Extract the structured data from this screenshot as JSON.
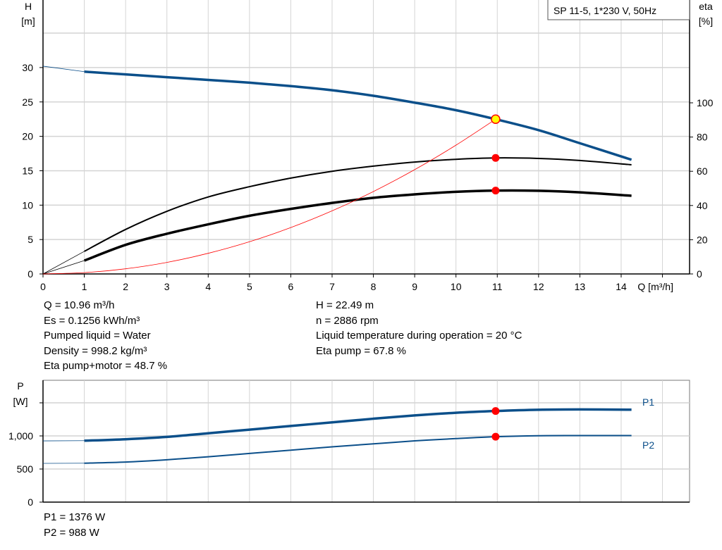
{
  "chart_data": [
    {
      "type": "line",
      "title": "SP 11-5, 1*230 V, 50Hz",
      "xlabel": "Q [m³/h]",
      "ylabel": "H\n[m]",
      "ylabel_lines": [
        "H",
        "[m]"
      ],
      "y2label_lines": [
        "eta",
        "[%]"
      ],
      "xlim": [
        0,
        15
      ],
      "ylim": [
        0,
        40
      ],
      "y2lim": [
        0,
        160
      ],
      "xticks": [
        "0",
        "1",
        "2",
        "3",
        "4",
        "5",
        "6",
        "7",
        "8",
        "9",
        "10",
        "11",
        "12",
        "13",
        "14"
      ],
      "yticks": [
        "0",
        "5",
        "10",
        "15",
        "20",
        "25",
        "30"
      ],
      "y2ticks": [
        "0",
        "20",
        "40",
        "60",
        "80",
        "100"
      ],
      "grid": true,
      "colors": {
        "head": "#0b4f8a",
        "eta": "#000000",
        "system": "#ff0000",
        "duty_point": "#ff0000",
        "duty_head_point": "#ffff00"
      },
      "series": [
        {
          "key": "head",
          "axis": "left",
          "x": [
            0,
            1,
            2,
            3,
            4,
            5,
            6,
            7,
            8,
            9,
            10,
            10.96,
            12,
            13,
            14.25
          ],
          "values": [
            30.2,
            29.4,
            29.0,
            28.6,
            28.2,
            27.8,
            27.3,
            26.7,
            25.9,
            24.9,
            23.8,
            22.49,
            20.9,
            19.0,
            16.6
          ]
        },
        {
          "key": "eta_pump",
          "axis": "right",
          "x": [
            0,
            1,
            2,
            3,
            4,
            5,
            6,
            7,
            8,
            9,
            10,
            10.96,
            12,
            13,
            14.25
          ],
          "values": [
            0,
            13.2,
            26,
            36.6,
            45,
            51,
            56,
            60,
            63,
            65.4,
            67,
            67.8,
            67.5,
            66.3,
            63.8
          ]
        },
        {
          "key": "eta_pump_motor",
          "axis": "right",
          "x": [
            0,
            1,
            2,
            3,
            4,
            5,
            6,
            7,
            8,
            9,
            10,
            10.96,
            12,
            13,
            14.25
          ],
          "values": [
            0,
            7.8,
            17,
            23.5,
            29,
            34,
            38,
            41.5,
            44.5,
            46.5,
            48,
            48.7,
            48.6,
            47.7,
            45.7
          ]
        },
        {
          "key": "system",
          "axis": "left",
          "x": [
            0,
            1,
            2,
            3,
            4,
            5,
            6,
            7,
            8,
            9,
            10,
            10.96
          ],
          "values": [
            0,
            0.19,
            0.75,
            1.68,
            3.0,
            4.68,
            6.74,
            9.17,
            11.98,
            15.16,
            18.72,
            22.49
          ]
        }
      ],
      "duty_point": {
        "Q": 10.96,
        "H": 22.49,
        "eta_pump": 67.8,
        "eta_pump_motor": 48.7
      }
    },
    {
      "type": "line",
      "ylabel_lines": [
        "P",
        "[W]"
      ],
      "xlim": [
        0,
        15
      ],
      "ylim": [
        0,
        1500
      ],
      "yticks": [
        "0",
        "500",
        "1,000",
        ""
      ],
      "grid": true,
      "colors": {
        "power": "#0b4f8a",
        "duty_point": "#ff0000"
      },
      "series": [
        {
          "name": "P1",
          "x": [
            0,
            1,
            2,
            3,
            4,
            5,
            6,
            7,
            8,
            9,
            10,
            10.96,
            12,
            13,
            14.25
          ],
          "values": [
            925,
            928,
            950,
            985,
            1040,
            1095,
            1150,
            1205,
            1260,
            1310,
            1350,
            1376,
            1395,
            1400,
            1396
          ]
        },
        {
          "name": "P2",
          "x": [
            0,
            1,
            2,
            3,
            4,
            5,
            6,
            7,
            8,
            9,
            10,
            10.96,
            12,
            13,
            14.25
          ],
          "values": [
            585,
            588,
            605,
            640,
            685,
            735,
            785,
            835,
            880,
            925,
            960,
            988,
            1003,
            1005,
            1005
          ]
        }
      ],
      "duty_point": {
        "Q": 10.96,
        "P1": 1376,
        "P2": 988
      }
    }
  ],
  "info_left": [
    "Q = 10.96 m³/h",
    "Es = 0.1256 kWh/m³",
    "Pumped liquid = Water",
    "Density = 998.2 kg/m³",
    "Eta pump+motor = 48.7 %"
  ],
  "info_right": [
    "H = 22.49 m",
    "n = 2886 rpm",
    "Liquid temperature during operation = 20 °C",
    "Eta pump = 67.8 %"
  ],
  "power_info": [
    "P1 = 1376 W",
    "P2 = 988 W"
  ]
}
